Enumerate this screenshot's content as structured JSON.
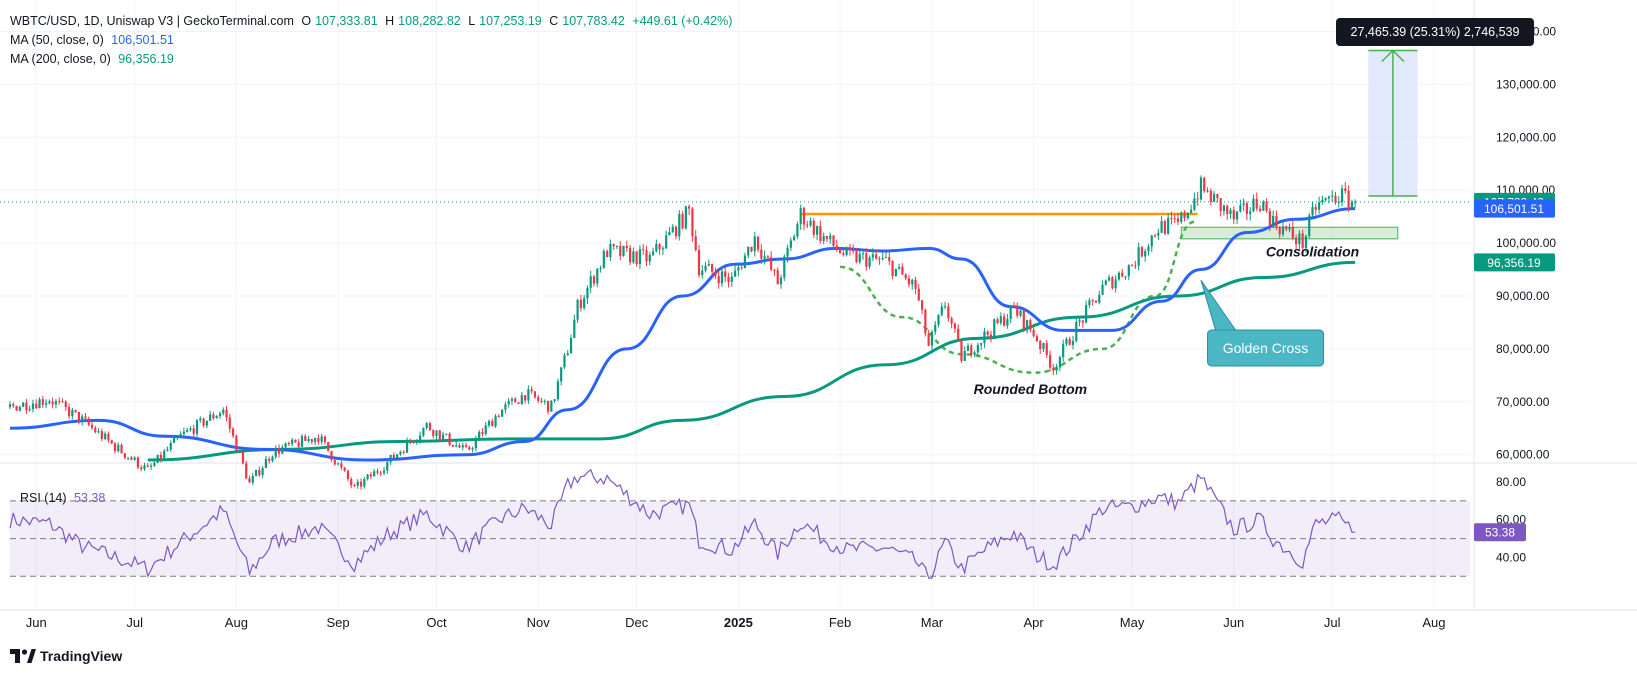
{
  "header": {
    "symbol": "WBTC/USD, 1D, Uniswap V3 | GeckoTerminal.com",
    "open_label": "O",
    "open": "107,333.81",
    "high_label": "H",
    "high": "108,282.82",
    "low_label": "L",
    "low": "107,253.19",
    "close_label": "C",
    "close": "107,783.42",
    "change": "+449.61 (+0.42%)"
  },
  "indicators": {
    "ma50_label": "MA (50, close, 0)",
    "ma50_value": "106,501.51",
    "ma200_label": "MA (200, close, 0)",
    "ma200_value": "96,356.19",
    "rsi_label": "RSI (14)",
    "rsi_value": "53.38"
  },
  "measure_label": "27,465.39 (25.31%) 2,746,539",
  "footer": {
    "brand": "TradingView"
  },
  "colors": {
    "up": "#089981",
    "down": "#f23645",
    "ma50": "#2962ff",
    "ma200": "#089981",
    "resistance": "#ff9800",
    "pattern": "#4caf50",
    "rsi": "#7e57c2",
    "callout": "#4bb6c4",
    "measure_fill": "#dbe4fb"
  },
  "chart_data": [
    {
      "type": "candlestick",
      "ylim": [
        59000,
        145000
      ],
      "y_ticks": [
        "140,000.00",
        "130,000.00",
        "120,000.00",
        "110,000.00",
        "100,000.00",
        "90,000.00",
        "80,000.00",
        "70,000.00",
        "60,000.00"
      ],
      "x_ticks": [
        "Jun",
        "Jul",
        "Aug",
        "Sep",
        "Oct",
        "Nov",
        "Dec",
        "2025",
        "Feb",
        "Mar",
        "Apr",
        "May",
        "Jun",
        "Jul",
        "Aug"
      ],
      "price_path": [
        [
          "2024-05-24",
          69000
        ],
        [
          "2024-06-05",
          70500
        ],
        [
          "2024-06-15",
          66500
        ],
        [
          "2024-06-25",
          61500
        ],
        [
          "2024-07-05",
          57000
        ],
        [
          "2024-07-15",
          63500
        ],
        [
          "2024-07-28",
          68500
        ],
        [
          "2024-08-05",
          54500
        ],
        [
          "2024-08-12",
          60500
        ],
        [
          "2024-08-26",
          63500
        ],
        [
          "2024-09-06",
          53500
        ],
        [
          "2024-09-16",
          58500
        ],
        [
          "2024-09-28",
          65500
        ],
        [
          "2024-10-10",
          60500
        ],
        [
          "2024-10-20",
          68000
        ],
        [
          "2024-10-28",
          71500
        ],
        [
          "2024-11-05",
          69000
        ],
        [
          "2024-11-10",
          80000
        ],
        [
          "2024-11-13",
          88000
        ],
        [
          "2024-11-22",
          98500
        ],
        [
          "2024-12-05",
          97000
        ],
        [
          "2024-12-17",
          106000
        ],
        [
          "2024-12-20",
          95500
        ],
        [
          "2024-12-30",
          93000
        ],
        [
          "2025-01-06",
          101000
        ],
        [
          "2025-01-13",
          92500
        ],
        [
          "2025-01-20",
          105500
        ],
        [
          "2025-01-27",
          101000
        ],
        [
          "2025-02-03",
          97500
        ],
        [
          "2025-02-15",
          96500
        ],
        [
          "2025-02-24",
          91500
        ],
        [
          "2025-02-28",
          80500
        ],
        [
          "2025-03-05",
          88500
        ],
        [
          "2025-03-10",
          78500
        ],
        [
          "2025-03-18",
          83000
        ],
        [
          "2025-03-26",
          87500
        ],
        [
          "2025-04-01",
          83000
        ],
        [
          "2025-04-07",
          76500
        ],
        [
          "2025-04-14",
          84000
        ],
        [
          "2025-04-22",
          91500
        ],
        [
          "2025-05-01",
          96000
        ],
        [
          "2025-05-09",
          103000
        ],
        [
          "2025-05-15",
          103500
        ],
        [
          "2025-05-22",
          110500
        ],
        [
          "2025-06-01",
          104500
        ],
        [
          "2025-06-09",
          108000
        ],
        [
          "2025-06-13",
          104000
        ],
        [
          "2025-06-22",
          100000
        ],
        [
          "2025-06-26",
          107000
        ],
        [
          "2025-07-03",
          109000
        ],
        [
          "2025-07-08",
          107783
        ]
      ],
      "ma50_path": [
        [
          "2024-05-24",
          65000
        ],
        [
          "2024-06-20",
          66500
        ],
        [
          "2024-07-10",
          63500
        ],
        [
          "2024-08-10",
          61000
        ],
        [
          "2024-09-10",
          59000
        ],
        [
          "2024-10-10",
          60000
        ],
        [
          "2024-10-28",
          62500
        ],
        [
          "2024-11-10",
          68500
        ],
        [
          "2024-11-28",
          80000
        ],
        [
          "2024-12-15",
          90000
        ],
        [
          "2024-12-31",
          96000
        ],
        [
          "2025-01-15",
          97000
        ],
        [
          "2025-01-31",
          99000
        ],
        [
          "2025-02-14",
          98500
        ],
        [
          "2025-02-28",
          99000
        ],
        [
          "2025-03-10",
          97000
        ],
        [
          "2025-03-25",
          88000
        ],
        [
          "2025-04-10",
          83500
        ],
        [
          "2025-04-25",
          83500
        ],
        [
          "2025-05-10",
          89000
        ],
        [
          "2025-05-22",
          95000
        ],
        [
          "2025-06-05",
          102000
        ],
        [
          "2025-06-20",
          104500
        ],
        [
          "2025-07-08",
          106501
        ]
      ],
      "ma200_path": [
        [
          "2024-07-05",
          59000
        ],
        [
          "2024-08-15",
          61000
        ],
        [
          "2024-09-20",
          62500
        ],
        [
          "2024-10-25",
          63000
        ],
        [
          "2024-11-20",
          63000
        ],
        [
          "2024-12-15",
          66500
        ],
        [
          "2025-01-15",
          71000
        ],
        [
          "2025-02-15",
          77000
        ],
        [
          "2025-03-15",
          82000
        ],
        [
          "2025-04-15",
          86000
        ],
        [
          "2025-05-15",
          90000
        ],
        [
          "2025-06-10",
          93500
        ],
        [
          "2025-07-08",
          96356
        ]
      ],
      "last_price": 107783.42,
      "ma50_last": 106501.51,
      "ma200_last": 96356.19,
      "price_axis_labels": [
        "107,783.42",
        "106,501.51",
        "96,356.19"
      ],
      "annotations": {
        "rounded_bottom": "Rounded Bottom",
        "consolidation": "Consolidation",
        "golden_cross": "Golden Cross",
        "resistance_level": 105500,
        "measure_from": 108900,
        "measure_to": 136400
      }
    },
    {
      "type": "line",
      "name": "RSI (14)",
      "ylim": [
        28,
        88
      ],
      "y_ticks": [
        "80.00",
        "60.00",
        "40.00"
      ],
      "upper_band": 70,
      "lower_band": 30,
      "mid_line": 50,
      "last": 53.38,
      "path": [
        [
          "2024-05-24",
          60
        ],
        [
          "2024-06-05",
          58
        ],
        [
          "2024-06-15",
          46
        ],
        [
          "2024-06-25",
          40
        ],
        [
          "2024-07-05",
          34
        ],
        [
          "2024-07-15",
          48
        ],
        [
          "2024-07-28",
          65
        ],
        [
          "2024-08-05",
          32
        ],
        [
          "2024-08-12",
          48
        ],
        [
          "2024-08-26",
          56
        ],
        [
          "2024-09-06",
          37
        ],
        [
          "2024-09-16",
          52
        ],
        [
          "2024-09-28",
          63
        ],
        [
          "2024-10-10",
          45
        ],
        [
          "2024-10-20",
          60
        ],
        [
          "2024-10-28",
          66
        ],
        [
          "2024-11-05",
          57
        ],
        [
          "2024-11-10",
          78
        ],
        [
          "2024-11-13",
          83
        ],
        [
          "2024-11-22",
          82
        ],
        [
          "2024-12-05",
          63
        ],
        [
          "2024-12-17",
          68
        ],
        [
          "2024-12-20",
          49
        ],
        [
          "2024-12-30",
          44
        ],
        [
          "2025-01-06",
          58
        ],
        [
          "2025-01-13",
          42
        ],
        [
          "2025-01-20",
          59
        ],
        [
          "2025-01-27",
          50
        ],
        [
          "2025-02-03",
          44
        ],
        [
          "2025-02-15",
          45
        ],
        [
          "2025-02-24",
          38
        ],
        [
          "2025-02-28",
          28
        ],
        [
          "2025-03-05",
          48
        ],
        [
          "2025-03-10",
          34
        ],
        [
          "2025-03-18",
          45
        ],
        [
          "2025-03-26",
          53
        ],
        [
          "2025-04-01",
          42
        ],
        [
          "2025-04-07",
          36
        ],
        [
          "2025-04-14",
          50
        ],
        [
          "2025-04-22",
          66
        ],
        [
          "2025-05-01",
          67
        ],
        [
          "2025-05-09",
          72
        ],
        [
          "2025-05-15",
          69
        ],
        [
          "2025-05-22",
          82
        ],
        [
          "2025-06-01",
          55
        ],
        [
          "2025-06-09",
          60
        ],
        [
          "2025-06-13",
          50
        ],
        [
          "2025-06-22",
          38
        ],
        [
          "2025-06-26",
          58
        ],
        [
          "2025-07-03",
          60
        ],
        [
          "2025-07-08",
          53.38
        ]
      ]
    }
  ]
}
